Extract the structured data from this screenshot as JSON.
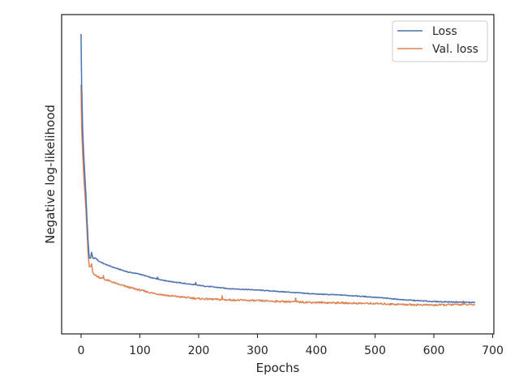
{
  "chart_data": {
    "type": "line",
    "title": "",
    "xlabel": "Epochs",
    "ylabel": "Negative log-likelihood",
    "xlim": [
      -33,
      702
    ],
    "ylim": [
      0.0,
      1.0
    ],
    "x_ticks": [
      0,
      100,
      200,
      300,
      400,
      500,
      600,
      700
    ],
    "x_tick_labels": [
      "0",
      "100",
      "200",
      "300",
      "400",
      "500",
      "600",
      "700"
    ],
    "y_tick_labels_shown": false,
    "grid": false,
    "legend_position": "top-right",
    "series": [
      {
        "name": "Loss",
        "color": "#4c72b0",
        "x": [
          0,
          1,
          3,
          5,
          8,
          10,
          12,
          14,
          16,
          18,
          20,
          25,
          30,
          40,
          50,
          60,
          80,
          100,
          120,
          150,
          200,
          250,
          300,
          350,
          400,
          450,
          500,
          550,
          600,
          650,
          670
        ],
        "y": [
          0.975,
          0.8,
          0.63,
          0.54,
          0.43,
          0.34,
          0.26,
          0.2,
          0.2,
          0.22,
          0.2,
          0.2,
          0.19,
          0.18,
          0.172,
          0.165,
          0.152,
          0.145,
          0.132,
          0.12,
          0.106,
          0.095,
          0.09,
          0.083,
          0.076,
          0.072,
          0.065,
          0.056,
          0.05,
          0.048,
          0.047
        ]
      },
      {
        "name": "Val. loss",
        "color": "#dd8452",
        "x": [
          0,
          1,
          3,
          5,
          8,
          10,
          12,
          14,
          16,
          18,
          20,
          25,
          30,
          40,
          50,
          60,
          80,
          100,
          120,
          150,
          200,
          250,
          300,
          350,
          400,
          450,
          500,
          550,
          600,
          650,
          670
        ],
        "y": [
          0.8,
          0.65,
          0.55,
          0.47,
          0.38,
          0.3,
          0.215,
          0.17,
          0.17,
          0.18,
          0.15,
          0.14,
          0.135,
          0.127,
          0.12,
          0.112,
          0.1,
          0.09,
          0.08,
          0.07,
          0.06,
          0.056,
          0.053,
          0.05,
          0.047,
          0.045,
          0.043,
          0.04,
          0.038,
          0.04,
          0.039
        ]
      }
    ]
  }
}
